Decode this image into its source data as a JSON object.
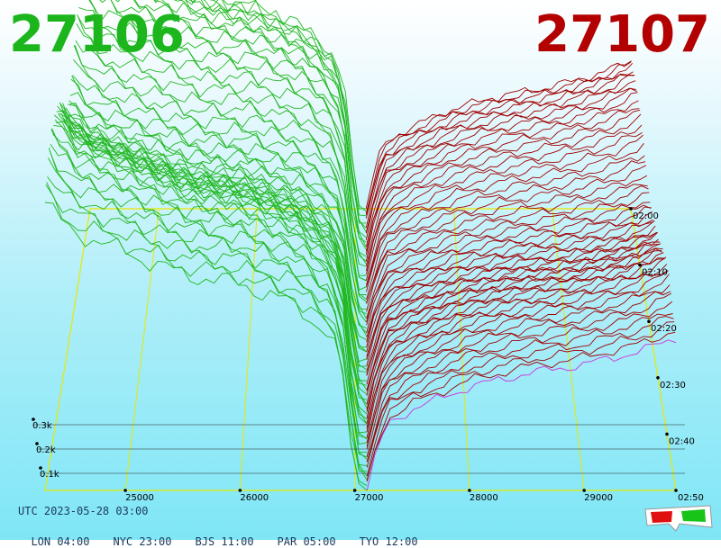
{
  "header": {
    "left_price": "27106",
    "right_price": "27107",
    "left_color": "#1cb51c",
    "right_color": "#b30000"
  },
  "footer": {
    "utc": "UTC 2023-05-28 03:00",
    "timezones": [
      "LON 04:00",
      "NYC 23:00",
      "BJS 11:00",
      "PAR 05:00",
      "TYO 12:00"
    ],
    "glasses_icon": "3d-glasses-icon"
  },
  "chart_data": {
    "type": "area",
    "title": "",
    "x_tick_labels": [
      "25000",
      "26000",
      "27000",
      "28000",
      "29000"
    ],
    "time_tick_labels": [
      "02:00",
      "02:10",
      "02:20",
      "02:30",
      "02:40",
      "02:50"
    ],
    "depth_tick_labels": [
      "0.1k",
      "0.2k",
      "0.3k"
    ],
    "xlim": [
      24300,
      29800
    ],
    "mid_price": 27106,
    "snapshots": 60,
    "series": [
      {
        "side": "bid",
        "color": "#22b822"
      },
      {
        "side": "ask",
        "color": "#a00000"
      }
    ],
    "bid_depth": [
      [
        24300,
        0.64
      ],
      [
        24500,
        0.58
      ],
      [
        25000,
        0.53
      ],
      [
        25500,
        0.48
      ],
      [
        26000,
        0.46
      ],
      [
        26500,
        0.41
      ],
      [
        26800,
        0.34
      ],
      [
        26900,
        0.25
      ],
      [
        26960,
        0.12
      ],
      [
        27000,
        0.02
      ],
      [
        27106,
        0.0
      ]
    ],
    "ask_depth": [
      [
        27107,
        0.0
      ],
      [
        27150,
        0.04
      ],
      [
        27200,
        0.1
      ],
      [
        27300,
        0.15
      ],
      [
        27500,
        0.18
      ],
      [
        28000,
        0.23
      ],
      [
        28500,
        0.26
      ],
      [
        29000,
        0.28
      ],
      [
        29500,
        0.31
      ],
      [
        29800,
        0.34
      ]
    ],
    "grid": true,
    "floor_color": "#e8e800",
    "last_snapshot_color": "#cc33dd"
  }
}
